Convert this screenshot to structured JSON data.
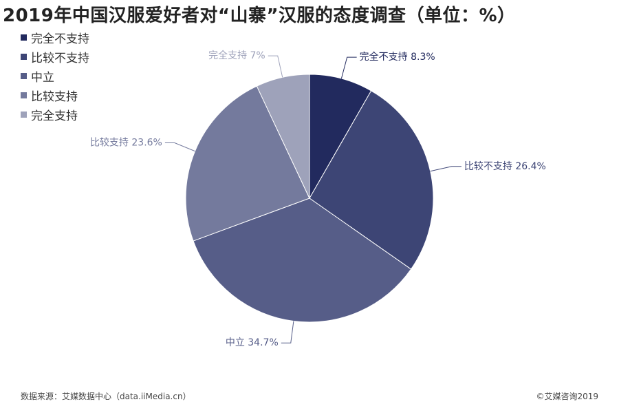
{
  "header": {
    "title": "2019年中国汉服爱好者对“山寨”汉服的态度调查（单位：%）"
  },
  "chart_data": {
    "type": "pie",
    "title": "2019年中国汉服爱好者对“山寨”汉服的态度调查（单位：%）",
    "unit": "%",
    "legend_position": "top-left",
    "slices": [
      {
        "label": "完全不支持",
        "value": 8.3,
        "display": "完全不支持 8.3%",
        "color": "#222a5e"
      },
      {
        "label": "比较不支持",
        "value": 26.4,
        "display": "比较不支持 26.4%",
        "color": "#3d4575"
      },
      {
        "label": "中立",
        "value": 34.7,
        "display": "中立 34.7%",
        "color": "#565d88"
      },
      {
        "label": "比较支持",
        "value": 23.6,
        "display": "比较支持 23.6%",
        "color": "#747a9d"
      },
      {
        "label": "完全支持",
        "value": 7,
        "display": "完全支持 7%",
        "color": "#9ea2ba"
      }
    ]
  },
  "footer": {
    "source": "数据来源：艾媒数据中心（data.iiMedia.cn）",
    "copyright": "©艾媒咨询2019"
  }
}
